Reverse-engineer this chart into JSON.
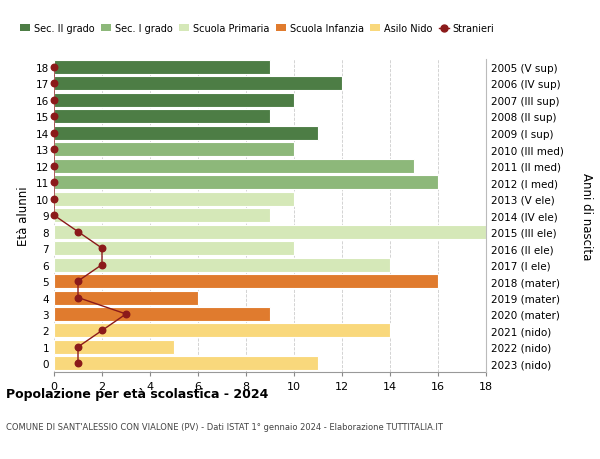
{
  "ages": [
    0,
    1,
    2,
    3,
    4,
    5,
    6,
    7,
    8,
    9,
    10,
    11,
    12,
    13,
    14,
    15,
    16,
    17,
    18
  ],
  "years": [
    "2023 (nido)",
    "2022 (nido)",
    "2021 (nido)",
    "2020 (mater)",
    "2019 (mater)",
    "2018 (mater)",
    "2017 (I ele)",
    "2016 (II ele)",
    "2015 (III ele)",
    "2014 (IV ele)",
    "2013 (V ele)",
    "2012 (I med)",
    "2011 (II med)",
    "2010 (III med)",
    "2009 (I sup)",
    "2008 (II sup)",
    "2007 (III sup)",
    "2006 (IV sup)",
    "2005 (V sup)"
  ],
  "bar_values": [
    11,
    5,
    14,
    9,
    6,
    16,
    14,
    10,
    18,
    9,
    10,
    16,
    15,
    10,
    11,
    9,
    10,
    12,
    9
  ],
  "bar_colors": [
    "#f9d87c",
    "#f9d87c",
    "#f9d87c",
    "#e07b2e",
    "#e07b2e",
    "#e07b2e",
    "#d5e8b8",
    "#d5e8b8",
    "#d5e8b8",
    "#d5e8b8",
    "#d5e8b8",
    "#8db87a",
    "#8db87a",
    "#8db87a",
    "#4d7d45",
    "#4d7d45",
    "#4d7d45",
    "#4d7d45",
    "#4d7d45"
  ],
  "stranieri": [
    1,
    1,
    2,
    3,
    1,
    1,
    2,
    2,
    1,
    0,
    0,
    0,
    0,
    0,
    0,
    0,
    0,
    0,
    0
  ],
  "stranieri_color": "#8b1a1a",
  "title": "Popolazione per età scolastica - 2024",
  "subtitle": "COMUNE DI SANT'ALESSIO CON VIALONE (PV) - Dati ISTAT 1° gennaio 2024 - Elaborazione TUTTITALIA.IT",
  "ylabel": "Età alunni",
  "ylabel_right": "Anni di nascita",
  "xlim": [
    0,
    18
  ],
  "ylim": [
    -0.5,
    18.5
  ],
  "xticks": [
    0,
    2,
    4,
    6,
    8,
    10,
    12,
    14,
    16,
    18
  ],
  "legend_labels": [
    "Sec. II grado",
    "Sec. I grado",
    "Scuola Primaria",
    "Scuola Infanzia",
    "Asilo Nido",
    "Stranieri"
  ],
  "legend_colors": [
    "#4d7d45",
    "#8db87a",
    "#d5e8b8",
    "#e07b2e",
    "#f9d87c",
    "#8b1a1a"
  ],
  "bg_color": "#ffffff",
  "grid_color": "#cccccc",
  "bar_height": 0.85
}
